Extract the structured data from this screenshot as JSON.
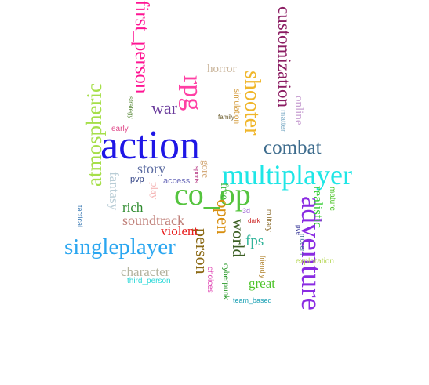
{
  "words": [
    {
      "key": "action",
      "text": "action",
      "color": "#1f16e6"
    },
    {
      "key": "multiplayer",
      "text": "multiplayer",
      "color": "#1fe6e6"
    },
    {
      "key": "coop",
      "text": "co_op",
      "color": "#55c43e"
    },
    {
      "key": "adventure",
      "text": "adventure",
      "color": "#8a2be2"
    },
    {
      "key": "singleplayer",
      "text": "singleplayer",
      "color": "#2aa6f0"
    },
    {
      "key": "atmospheric",
      "text": "atmospheric",
      "color": "#a6df4a"
    },
    {
      "key": "shooter",
      "text": "shooter",
      "color": "#f0b62a"
    },
    {
      "key": "rpg",
      "text": "rpg",
      "color": "#ff3fa4"
    },
    {
      "key": "customization",
      "text": "customization",
      "color": "#8b1c62"
    },
    {
      "key": "first_person",
      "text": "first_person",
      "color": "#ff1493"
    },
    {
      "key": "combat",
      "text": "combat",
      "color": "#3f6d8e"
    },
    {
      "key": "person",
      "text": "person",
      "color": "#8b6914"
    },
    {
      "key": "war",
      "text": "war",
      "color": "#6a3b9c"
    },
    {
      "key": "open",
      "text": "open",
      "color": "#d88f10"
    },
    {
      "key": "world",
      "text": "world",
      "color": "#3b5f23"
    },
    {
      "key": "fps",
      "text": "fps",
      "color": "#32b49a"
    },
    {
      "key": "great",
      "text": "great",
      "color": "#4ec42a"
    },
    {
      "key": "realistic",
      "text": "realistic",
      "color": "#33cc33"
    },
    {
      "key": "story",
      "text": "story",
      "color": "#5a6aa0"
    },
    {
      "key": "soundtrack",
      "text": "soundtrack",
      "color": "#c0807a"
    },
    {
      "key": "violent",
      "text": "violent",
      "color": "#e81c1c"
    },
    {
      "key": "rich",
      "text": "rich",
      "color": "#2e8b2e"
    },
    {
      "key": "character",
      "text": "character",
      "color": "#b4b4a0"
    },
    {
      "key": "horror",
      "text": "horror",
      "color": "#c9b49a"
    },
    {
      "key": "online",
      "text": "online",
      "color": "#c8a0d2"
    },
    {
      "key": "fantasy",
      "text": "fantasy",
      "color": "#b9cdd6"
    },
    {
      "key": "free",
      "text": "free",
      "color": "#3cb43c"
    },
    {
      "key": "gore",
      "text": "gore",
      "color": "#d4aa7a"
    },
    {
      "key": "play",
      "text": "play",
      "color": "#f5b8b8"
    },
    {
      "key": "pvp",
      "text": "pvp",
      "color": "#3a4a8a"
    },
    {
      "key": "access",
      "text": "access",
      "color": "#6a6aba"
    },
    {
      "key": "simulation",
      "text": "simulation",
      "color": "#d49a3a"
    },
    {
      "key": "matter",
      "text": "matter",
      "color": "#8ab4cc"
    },
    {
      "key": "mature",
      "text": "mature",
      "color": "#4ec42a"
    },
    {
      "key": "exploration",
      "text": "exploration",
      "color": "#b8d85a"
    },
    {
      "key": "third_person",
      "text": "third_person",
      "color": "#2ad8d8"
    },
    {
      "key": "cyberpunk",
      "text": "cyberpunk",
      "color": "#2a9a2a"
    },
    {
      "key": "choices",
      "text": "choices",
      "color": "#e04ab4"
    },
    {
      "key": "friendly",
      "text": "friendly",
      "color": "#b48a3a"
    },
    {
      "key": "military",
      "text": "military",
      "color": "#8a6a2a"
    },
    {
      "key": "team_based",
      "text": "team_based",
      "color": "#1aa0b4"
    },
    {
      "key": "3d",
      "text": "3d",
      "color": "#a06ad4"
    },
    {
      "key": "dark",
      "text": "dark",
      "color": "#cc2222"
    },
    {
      "key": "pve",
      "text": "pve",
      "color": "#3a3a9a"
    },
    {
      "key": "modern",
      "text": "modern",
      "color": "#3a6a9a"
    },
    {
      "key": "sports",
      "text": "sports",
      "color": "#b02a7a"
    },
    {
      "key": "family",
      "text": "family",
      "color": "#6a5a2a"
    },
    {
      "key": "early",
      "text": "early",
      "color": "#e04a8a"
    },
    {
      "key": "strategy",
      "text": "strategy",
      "color": "#5a8a3a"
    },
    {
      "key": "tactical",
      "text": "tactical",
      "color": "#3a7ab4"
    }
  ]
}
